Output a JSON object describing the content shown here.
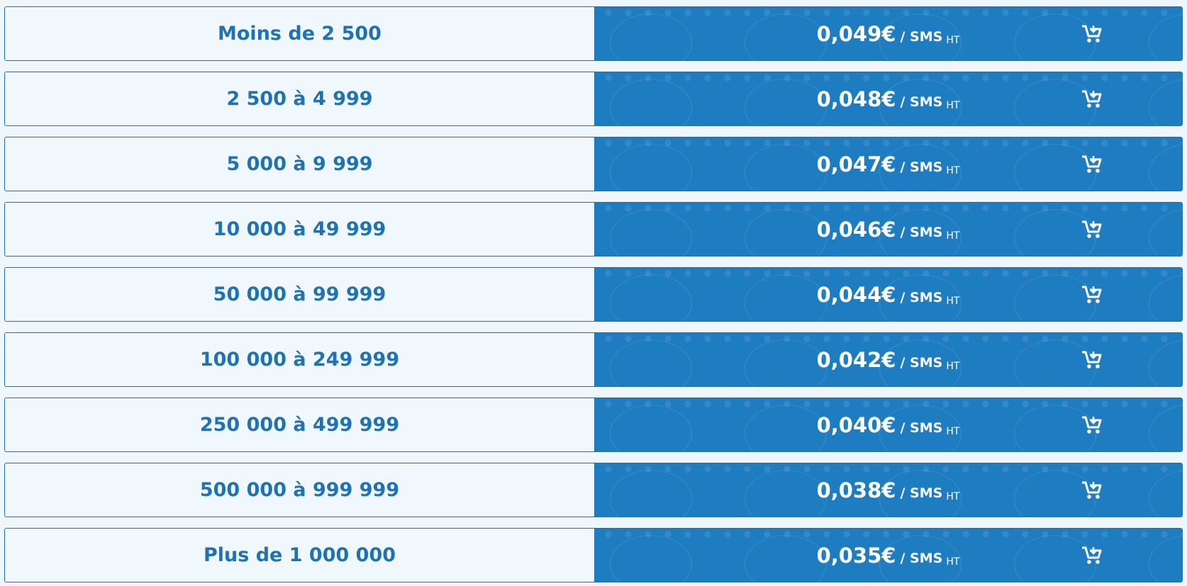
{
  "rows": [
    {
      "range": "Moins de 2 500",
      "price": "0,049€",
      "unit": "/ SMS",
      "tax": "HT"
    },
    {
      "range": "2 500 à 4 999",
      "price": "0,048€",
      "unit": "/ SMS",
      "tax": "HT"
    },
    {
      "range": "5 000 à 9 999",
      "price": "0,047€",
      "unit": "/ SMS",
      "tax": "HT"
    },
    {
      "range": "10 000 à 49 999",
      "price": "0,046€",
      "unit": "/ SMS",
      "tax": "HT"
    },
    {
      "range": "50 000 à 99 999",
      "price": "0,044€",
      "unit": "/ SMS",
      "tax": "HT"
    },
    {
      "range": "100 000 à 249 999",
      "price": "0,042€",
      "unit": "/ SMS",
      "tax": "HT"
    },
    {
      "range": "250 000 à 499 999",
      "price": "0,040€",
      "unit": "/ SMS",
      "tax": "HT"
    },
    {
      "range": "500 000 à 999 999",
      "price": "0,038€",
      "unit": "/ SMS",
      "tax": "HT"
    },
    {
      "range": "Plus de 1 000 000",
      "price": "0,035€",
      "unit": "/ SMS",
      "tax": "HT"
    }
  ]
}
